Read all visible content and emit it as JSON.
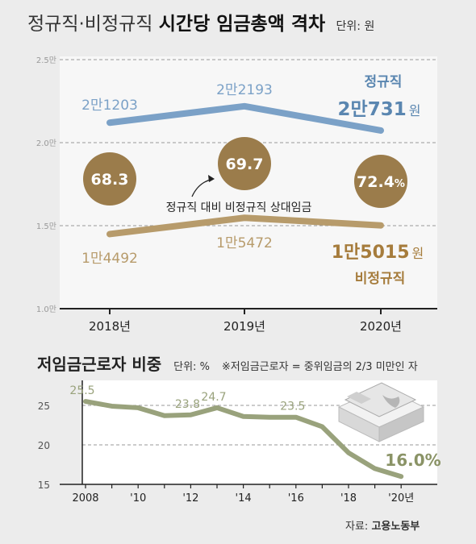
{
  "title": {
    "light": "정규직·비정규직",
    "bold": "시간당 임금총액 격차",
    "unit": "단위: 원"
  },
  "colors": {
    "regular": "#7ba1c7",
    "irregular": "#b79b6b",
    "ratio_circle": "#9b7c4b",
    "low_wage": "#99a27c",
    "plot_bg": "#f7f7f7"
  },
  "chart_data": [
    {
      "type": "line",
      "categories": [
        "2018년",
        "2019년",
        "2020년"
      ],
      "y_tick_labels": [
        "2.5만",
        "2.0만",
        "1.5만",
        "1.0만"
      ],
      "ylim": [
        10000,
        25000
      ],
      "series": [
        {
          "name": "정규직",
          "values": [
            21203,
            22193,
            20731
          ],
          "labels": [
            "2만1203",
            "2만2193",
            "2만731"
          ],
          "last_label_suffix": "원",
          "color": "#7ba1c7"
        },
        {
          "name": "비정규직",
          "values": [
            14492,
            15472,
            15015
          ],
          "labels": [
            "1만4492",
            "1만5472",
            "1만5015"
          ],
          "last_label_suffix": "원",
          "color": "#b79b6b"
        }
      ],
      "ratio": {
        "label": "정규직 대비 비정규직 상대임금",
        "values": [
          "68.3",
          "69.7",
          "72.4"
        ],
        "last_suffix": "%"
      },
      "grid": true
    },
    {
      "type": "line",
      "title": "저임금근로자 비중",
      "unit": "단위: %",
      "note": "※저임금근로자 = 중위임금의 2/3 미만인 자",
      "x": [
        2008,
        2009,
        2010,
        2011,
        2012,
        2013,
        2014,
        2015,
        2016,
        2017,
        2018,
        2019,
        2020
      ],
      "x_tick_labels": [
        "2008",
        "'10",
        "'12",
        "'14",
        "'16",
        "'18",
        "'20년"
      ],
      "values": [
        25.5,
        24.9,
        24.7,
        23.7,
        23.8,
        24.7,
        23.6,
        23.5,
        23.5,
        22.3,
        19.0,
        17.0,
        16.0
      ],
      "data_labels": [
        {
          "index": 0,
          "text": "25.5"
        },
        {
          "index": 4,
          "text": "23.8"
        },
        {
          "index": 5,
          "text": "24.7"
        },
        {
          "index": 8,
          "text": "23.5"
        },
        {
          "index": 12,
          "text": "16.0%"
        }
      ],
      "y_tick_labels": [
        "25",
        "20",
        "15"
      ],
      "ylim": [
        15,
        27
      ],
      "grid": true
    }
  ],
  "source": {
    "label": "자료:",
    "org": "고용노동부"
  }
}
